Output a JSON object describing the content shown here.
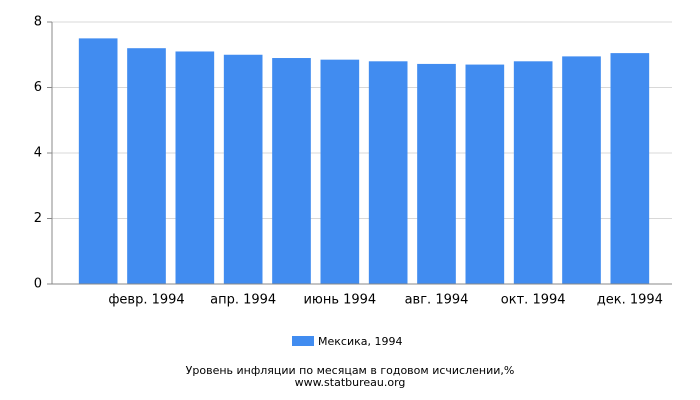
{
  "chart_data": {
    "type": "bar",
    "title": "Уровень инфляции по месяцам в годовом исчислении,%",
    "subtitle": "www.statbureau.org",
    "categories": [
      null,
      "февр. 1994",
      null,
      "апр. 1994",
      null,
      "июнь 1994",
      null,
      "авг. 1994",
      null,
      "окт. 1994",
      null,
      "дек. 1994"
    ],
    "series": [
      {
        "name": "Мексика, 1994",
        "color": "#418cf0",
        "values": [
          7.5,
          7.2,
          7.1,
          7.0,
          6.9,
          6.85,
          6.8,
          6.72,
          6.7,
          6.8,
          6.95,
          7.05
        ]
      }
    ],
    "ylim": [
      0,
      8
    ],
    "yticks": [
      0,
      2,
      4,
      6,
      8
    ],
    "grid": true
  }
}
